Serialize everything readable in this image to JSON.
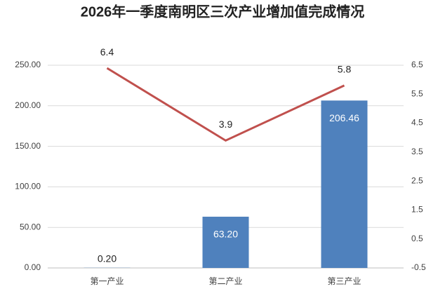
{
  "chart_data": {
    "type": "bar",
    "title": "2026年一季度南明区三次产业增加值完成情况",
    "categories": [
      "第一产业",
      "第二产业",
      "第三产业"
    ],
    "series": [
      {
        "type": "bar",
        "color": "#4f81bd",
        "values": [
          0.2,
          63.2,
          206.46
        ],
        "value_labels": [
          "0.20",
          "63.20",
          "206.46"
        ]
      },
      {
        "type": "line",
        "color": "#c0504d",
        "axis": "y2",
        "values": [
          6.4,
          3.9,
          5.8
        ]
      }
    ],
    "ylim": [
      0,
      250
    ],
    "yticks": [
      {
        "value": 0,
        "label": "0.00"
      },
      {
        "value": 50,
        "label": "50.00"
      },
      {
        "value": 100,
        "label": "100.00"
      },
      {
        "value": 150,
        "label": "150.00"
      },
      {
        "value": 200,
        "label": "200.00"
      },
      {
        "value": 250,
        "label": "250.00"
      }
    ],
    "y2lim": [
      -0.5,
      6.5
    ],
    "y2ticks": [
      -0.5,
      0.5,
      1.5,
      2.5,
      3.5,
      4.5,
      5.5,
      6.5
    ],
    "grid": true
  }
}
